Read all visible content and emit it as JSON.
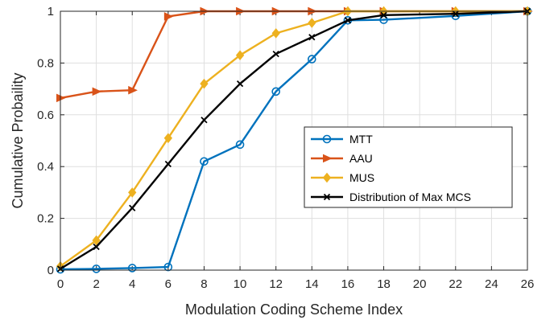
{
  "chart_data": {
    "type": "line",
    "xlabel": "Modulation Coding Scheme Index",
    "ylabel": "Cumulative Probaility",
    "x_ticks": [
      0,
      2,
      4,
      6,
      8,
      10,
      12,
      14,
      16,
      18,
      20,
      22,
      24,
      26
    ],
    "x_tick_labels": [
      "0",
      "2",
      "4",
      "6",
      "8",
      "10",
      "12",
      "14",
      "16",
      "18",
      "20",
      "22",
      "24",
      "26"
    ],
    "y_ticks": [
      0,
      0.2,
      0.4,
      0.6,
      0.8,
      1
    ],
    "y_tick_labels": [
      "0",
      "0.2",
      "0.4",
      "0.6",
      "0.8",
      "1"
    ],
    "xlim": [
      0,
      26
    ],
    "ylim": [
      0,
      1
    ],
    "grid": true,
    "legend_position": "center-right",
    "series": [
      {
        "name": "MTT",
        "color": "#0072BD",
        "marker": "circle",
        "x": [
          0,
          2,
          4,
          6,
          8,
          10,
          12,
          14,
          16,
          18,
          22,
          26
        ],
        "y": [
          0.003,
          0.005,
          0.008,
          0.012,
          0.42,
          0.485,
          0.69,
          0.815,
          0.965,
          0.967,
          0.982,
          1.0
        ]
      },
      {
        "name": "AAU",
        "color": "#D95319",
        "marker": "triangle-right",
        "x": [
          0,
          2,
          4,
          6,
          8,
          10,
          12,
          14,
          16,
          18,
          22,
          26
        ],
        "y": [
          0.665,
          0.69,
          0.695,
          0.98,
          1.0,
          1.0,
          1.0,
          1.0,
          1.0,
          1.0,
          1.0,
          1.0
        ]
      },
      {
        "name": "MUS",
        "color": "#EDB120",
        "marker": "diamond",
        "x": [
          0,
          2,
          4,
          6,
          8,
          10,
          12,
          14,
          16,
          18,
          22,
          26
        ],
        "y": [
          0.015,
          0.115,
          0.3,
          0.51,
          0.72,
          0.83,
          0.915,
          0.955,
          1.0,
          1.0,
          1.0,
          1.0
        ]
      },
      {
        "name": "Distribution of Max MCS",
        "color": "#000000",
        "marker": "cross",
        "x": [
          0,
          2,
          4,
          6,
          8,
          10,
          12,
          14,
          16,
          18,
          22,
          26
        ],
        "y": [
          0.005,
          0.09,
          0.24,
          0.41,
          0.58,
          0.72,
          0.835,
          0.9,
          0.965,
          0.985,
          0.99,
          1.0
        ]
      }
    ]
  }
}
